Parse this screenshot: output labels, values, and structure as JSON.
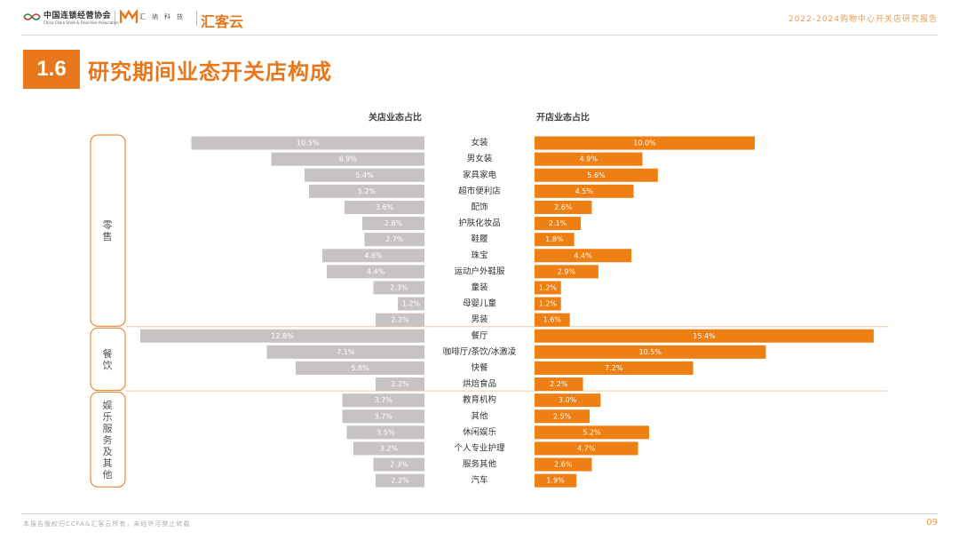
{
  "header": {
    "org_name_cn": "中国连锁经营协会",
    "org_name_en": "China Chain Store & Franchise Association",
    "org_abbr": "CCFA",
    "partner1": "汇纳科技",
    "partner2": "汇客云",
    "report_title": "2022-2024购物中心开关店研究报告"
  },
  "section": {
    "number": "1.6",
    "title": "研究期间业态开关店构成"
  },
  "colors": {
    "accent": "#e8761a",
    "close_bar": "#c8c3c3",
    "open_bar": "#ee7f12"
  },
  "footer": {
    "note": "本报告版权归CCFA&汇客云所有，未经许可禁止转载",
    "page": "09"
  },
  "chart_data": {
    "type": "bar",
    "orientation": "horizontal-butterfly",
    "left_title": "关店业态占比",
    "right_title": "开店业态占比",
    "unit": "%",
    "categories": [
      "女装",
      "男女装",
      "家具家电",
      "超市便利店",
      "配饰",
      "护肤化妆品",
      "鞋履",
      "珠宝",
      "运动户外鞋服",
      "童装",
      "母婴儿童",
      "男装",
      "餐厅",
      "咖啡厅/茶饮/冰激凌",
      "快餐",
      "烘焙食品",
      "教育机构",
      "其他",
      "休闲娱乐",
      "个人专业护理",
      "服务其他",
      "汽车"
    ],
    "groups": [
      {
        "label": "零售",
        "count": 12
      },
      {
        "label": "餐饮",
        "count": 4
      },
      {
        "label": "娱乐服务及其他",
        "count": 6
      }
    ],
    "series": [
      {
        "name": "关店业态占比",
        "values": [
          10.5,
          6.9,
          5.4,
          5.2,
          3.6,
          2.8,
          2.7,
          4.6,
          4.4,
          2.3,
          1.2,
          2.2,
          12.8,
          7.1,
          5.8,
          2.2,
          3.7,
          3.7,
          3.5,
          3.2,
          2.3,
          2.2
        ]
      },
      {
        "name": "开店业态占比",
        "values": [
          10.0,
          4.9,
          5.6,
          4.5,
          2.6,
          2.1,
          1.8,
          4.4,
          2.9,
          1.2,
          1.2,
          1.6,
          15.4,
          10.5,
          7.2,
          2.2,
          3.0,
          2.5,
          5.2,
          4.7,
          2.6,
          1.9
        ]
      }
    ]
  }
}
